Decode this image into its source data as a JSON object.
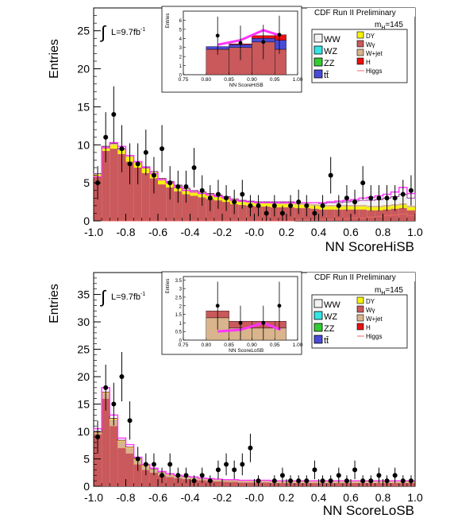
{
  "figure": {
    "panels": [
      {
        "banner": "CDF Run II Preliminary",
        "mass_label": "m",
        "mass_sub": "H",
        "mass_value": "=145",
        "lumi_text": "L=9.7fb",
        "lumi_sup": "-1",
        "integral_symbol": "∫",
        "ylabel": "Entries",
        "xlabel": "NN ScoreHiSB",
        "inset_xlabel": "NN ScoreHiSB",
        "inset_ylabel": "Entries"
      },
      {
        "banner": "CDF Run II Preliminary",
        "mass_label": "m",
        "mass_sub": "H",
        "mass_value": "=145",
        "lumi_text": "L=9.7fb",
        "lumi_sup": "-1",
        "integral_symbol": "∫",
        "ylabel": "Entries",
        "xlabel": "NN ScoreLoSB",
        "inset_xlabel": "NN ScoreLoSB",
        "inset_ylabel": "Entries"
      }
    ],
    "legend": {
      "left": [
        {
          "label": "WW",
          "color": "#f2f2f2"
        },
        {
          "label": "WZ",
          "color": "#33e6e6"
        },
        {
          "label": "ZZ",
          "color": "#33cc33"
        },
        {
          "label": "tt̄",
          "color": "#4a4ad9"
        }
      ],
      "right": [
        {
          "label": "DY",
          "color": "#f5f20a"
        },
        {
          "label": "Wγ",
          "color": "#c9595b"
        },
        {
          "label": "W+jet",
          "color": "#d9b48c"
        },
        {
          "label": "H",
          "color": "#e80f0f"
        },
        {
          "label": "Higgs",
          "color": "#e86b6b",
          "line": true
        }
      ]
    },
    "colors": {
      "wgamma": "#c9595b",
      "wjet": "#d9b48c",
      "dy": "#f5f20a",
      "ww": "#f2f2f2",
      "signal_band": "#ff33ff",
      "higgs_line": "#e86b6b",
      "ttbar": "#4a4ad9",
      "h_red": "#e80f0f"
    }
  },
  "chart_data": [
    {
      "type": "bar",
      "title": "",
      "xlabel": "NN ScoreHiSB",
      "ylabel": "Entries",
      "xlim": [
        -1.0,
        1.0
      ],
      "ylim": [
        0,
        28
      ],
      "yticks": [
        0,
        5,
        10,
        15,
        20,
        25
      ],
      "xticks": [
        -1.0,
        -0.8,
        -0.6,
        -0.4,
        -0.2,
        -0.0,
        0.2,
        0.4,
        0.6,
        0.8,
        1.0
      ],
      "xtick_labels": [
        "-1.0",
        "-0.8",
        "-0.6",
        "-0.4",
        "-0.2",
        "-0.0",
        "0.2",
        "0.4",
        "0.6",
        "0.8",
        "1.0"
      ],
      "bin_edges": [
        -1.0,
        -0.95,
        -0.9,
        -0.85,
        -0.8,
        -0.75,
        -0.7,
        -0.65,
        -0.6,
        -0.55,
        -0.5,
        -0.45,
        -0.4,
        -0.35,
        -0.3,
        -0.25,
        -0.2,
        -0.15,
        -0.1,
        -0.05,
        0.0,
        0.05,
        0.1,
        0.15,
        0.2,
        0.25,
        0.3,
        0.35,
        0.4,
        0.45,
        0.5,
        0.55,
        0.6,
        0.65,
        0.7,
        0.75,
        0.8,
        0.85,
        0.9,
        0.95,
        1.0
      ],
      "series": [
        {
          "name": "Wγ",
          "values": [
            5.8,
            9.2,
            9.5,
            8.8,
            7.8,
            7.0,
            6.3,
            5.6,
            4.8,
            4.4,
            3.9,
            3.5,
            3.3,
            3.1,
            2.9,
            2.7,
            2.5,
            2.2,
            2.1,
            2.0,
            1.9,
            1.9,
            1.8,
            1.8,
            1.8,
            1.7,
            1.7,
            1.6,
            1.5,
            1.5,
            1.5,
            1.5,
            1.5,
            1.5,
            1.4,
            1.4,
            1.5,
            1.6,
            1.7,
            1.4
          ]
        },
        {
          "name": "DY",
          "values": [
            0.3,
            0.4,
            0.5,
            0.5,
            0.6,
            0.6,
            0.6,
            0.7,
            0.6,
            0.6,
            0.6,
            0.6,
            0.5,
            0.5,
            0.5,
            0.5,
            0.5,
            0.5,
            0.4,
            0.4,
            0.4,
            0.4,
            0.4,
            0.4,
            0.4,
            0.4,
            0.4,
            0.4,
            0.4,
            0.4,
            0.4,
            0.4,
            0.4,
            0.4,
            0.4,
            0.4,
            0.4,
            0.4,
            0.4,
            0.4
          ]
        },
        {
          "name": "W+jet",
          "values": [
            0.1,
            0.2,
            0.2,
            0.2,
            0.2,
            0.2,
            0.2,
            0.2,
            0.2,
            0.2,
            0.2,
            0.2,
            0.2,
            0.2,
            0.2,
            0.2,
            0.2,
            0.2,
            0.2,
            0.2,
            0.2,
            0.2,
            0.2,
            0.2,
            0.2,
            0.2,
            0.2,
            0.2,
            0.2,
            0.2,
            0.2,
            0.2,
            0.2,
            0.2,
            0.2,
            0.2,
            0.2,
            0.2,
            0.2,
            0.2
          ]
        },
        {
          "name": "WW",
          "values": [
            0.0,
            0.0,
            0.0,
            0.0,
            0.0,
            0.0,
            0.0,
            0.0,
            0.0,
            0.0,
            0.0,
            0.0,
            0.0,
            0.0,
            0.0,
            0.0,
            0.0,
            0.0,
            0.0,
            0.0,
            0.0,
            0.0,
            0.1,
            0.1,
            0.1,
            0.1,
            0.1,
            0.2,
            0.2,
            0.3,
            0.3,
            0.4,
            0.5,
            0.6,
            0.7,
            0.8,
            0.9,
            1.0,
            1.2,
            1.0
          ]
        }
      ],
      "signal_band": [
        5.8,
        9.6,
        10.3,
        9.8,
        8.6,
        7.8,
        7.0,
        6.2,
        5.4,
        5.0,
        4.4,
        4.0,
        3.8,
        3.6,
        3.4,
        3.2,
        3.0,
        2.7,
        2.6,
        2.5,
        2.4,
        2.4,
        2.4,
        2.4,
        2.4,
        2.4,
        2.4,
        2.4,
        2.4,
        2.5,
        2.6,
        2.7,
        2.8,
        3.0,
        3.1,
        3.3,
        3.5,
        3.8,
        4.4,
        3.6
      ],
      "higgs_line": [
        0.0,
        0.0,
        0.0,
        0.0,
        0.0,
        0.0,
        0.0,
        0.0,
        0.0,
        0.0,
        0.0,
        0.0,
        0.0,
        0.0,
        0.0,
        0.0,
        0.0,
        0.0,
        0.0,
        0.0,
        0.0,
        0.0,
        0.0,
        0.0,
        0.0,
        0.1,
        0.1,
        0.1,
        0.2,
        0.2,
        0.3,
        0.3,
        0.4,
        0.4,
        0.5,
        0.6,
        0.7,
        0.8,
        0.9,
        0.7
      ],
      "data_points": [
        5,
        11,
        14,
        9.5,
        7.5,
        7.5,
        9,
        6,
        9.5,
        5,
        4.5,
        4.5,
        7,
        4,
        3,
        3.5,
        3,
        2.5,
        3.5,
        2,
        2,
        1,
        2,
        1,
        2,
        2.5,
        2,
        1,
        2,
        6,
        2,
        3,
        2.5,
        5,
        3,
        3,
        3,
        3,
        3.5,
        4
      ],
      "data_errors": [
        2.2,
        3.3,
        3.7,
        3.1,
        2.7,
        2.7,
        3.0,
        2.4,
        3.1,
        2.2,
        2.1,
        2.1,
        2.6,
        2.0,
        1.7,
        1.9,
        1.7,
        1.6,
        1.9,
        1.4,
        1.4,
        1.0,
        1.4,
        1.0,
        1.4,
        1.6,
        1.4,
        1.0,
        1.4,
        2.4,
        1.4,
        1.7,
        1.6,
        2.2,
        1.7,
        1.7,
        1.7,
        1.7,
        1.9,
        2.0
      ],
      "inset": {
        "xlim": [
          0.75,
          1.0
        ],
        "ylim": [
          0,
          7
        ],
        "yticks": [
          0,
          1,
          2,
          3,
          4,
          5,
          6
        ],
        "xticks": [
          0.75,
          0.8,
          0.85,
          0.9,
          0.95,
          1.0
        ],
        "xtick_labels": [
          "0.75",
          "0.80",
          "0.85",
          "0.90",
          "0.95",
          "1.00"
        ],
        "bin_edges": [
          0.8,
          0.85,
          0.9,
          0.95,
          0.975
        ],
        "series": [
          {
            "name": "Wγ",
            "values": [
              2.8,
              3.0,
              3.6,
              2.8
            ]
          },
          {
            "name": "tt̄",
            "values": [
              0.3,
              0.3,
              0.4,
              1.0
            ]
          },
          {
            "name": "H",
            "values": [
              0.0,
              0.1,
              0.3,
              0.6
            ]
          }
        ],
        "signal_band": [
          3.3,
          3.8,
          4.9,
          4.3
        ],
        "data_x": [
          0.825,
          0.875,
          0.925,
          0.96
        ],
        "data_points": [
          4.3,
          3.5,
          3.6,
          4.4
        ],
        "data_errors": [
          2.1,
          1.9,
          1.9,
          2.1
        ]
      }
    },
    {
      "type": "bar",
      "title": "",
      "xlabel": "NN ScoreLoSB",
      "ylabel": "Entries",
      "xlim": [
        -1.0,
        1.0
      ],
      "ylim": [
        0,
        39
      ],
      "yticks": [
        0,
        5,
        10,
        15,
        20,
        25,
        30,
        35
      ],
      "xticks": [
        -1.0,
        -0.8,
        -0.6,
        -0.4,
        -0.2,
        -0.0,
        0.2,
        0.4,
        0.6,
        0.8,
        1.0
      ],
      "xtick_labels": [
        "-1.0",
        "-0.8",
        "-0.6",
        "-0.4",
        "-0.2",
        "-0.0",
        "0.2",
        "0.4",
        "0.6",
        "0.8",
        "1.0"
      ],
      "bin_edges": [
        -1.0,
        -0.95,
        -0.9,
        -0.85,
        -0.8,
        -0.75,
        -0.7,
        -0.65,
        -0.6,
        -0.55,
        -0.5,
        -0.45,
        -0.4,
        -0.35,
        -0.3,
        -0.25,
        -0.2,
        -0.15,
        -0.1,
        -0.05,
        0.0,
        0.05,
        0.1,
        0.15,
        0.2,
        0.25,
        0.3,
        0.35,
        0.4,
        0.45,
        0.5,
        0.55,
        0.6,
        0.65,
        0.7,
        0.75,
        0.8,
        0.85,
        0.9,
        0.95,
        1.0
      ],
      "series": [
        {
          "name": "Wγ",
          "values": [
            9.5,
            16.0,
            11.0,
            7.0,
            6.0,
            4.0,
            3.0,
            2.5,
            2.0,
            1.7,
            1.5,
            1.3,
            1.2,
            1.1,
            1.0,
            0.9,
            0.8,
            0.8,
            0.7,
            0.7,
            0.7,
            0.7,
            0.6,
            0.6,
            0.6,
            0.6,
            0.6,
            0.6,
            0.6,
            0.6,
            0.6,
            0.6,
            0.6,
            0.6,
            0.6,
            0.6,
            0.6,
            0.6,
            0.6,
            0.6
          ]
        },
        {
          "name": "W+jet",
          "values": [
            0.3,
            1.0,
            1.2,
            1.2,
            1.0,
            0.9,
            0.7,
            0.6,
            0.5,
            0.5,
            0.4,
            0.4,
            0.4,
            0.3,
            0.3,
            0.3,
            0.3,
            0.3,
            0.3,
            0.3,
            0.3,
            0.3,
            0.3,
            0.3,
            0.3,
            0.3,
            0.3,
            0.3,
            0.3,
            0.3,
            0.3,
            0.3,
            0.3,
            0.3,
            0.3,
            0.3,
            0.3,
            0.3,
            0.3,
            0.3
          ]
        },
        {
          "name": "DY",
          "values": [
            0.1,
            0.2,
            0.2,
            0.2,
            0.2,
            0.2,
            0.2,
            0.1,
            0.1,
            0.1,
            0.1,
            0.1,
            0.1,
            0.1,
            0.1,
            0.1,
            0.1,
            0.1,
            0.1,
            0.1,
            0.1,
            0.1,
            0.1,
            0.1,
            0.1,
            0.1,
            0.1,
            0.1,
            0.1,
            0.1,
            0.1,
            0.1,
            0.1,
            0.1,
            0.1,
            0.1,
            0.1,
            0.1,
            0.1,
            0.1
          ]
        }
      ],
      "signal_band": [
        10.5,
        18.0,
        13.0,
        8.8,
        7.6,
        5.3,
        4.0,
        3.3,
        2.7,
        2.3,
        2.0,
        1.8,
        1.7,
        1.5,
        1.4,
        1.3,
        1.2,
        1.2,
        1.1,
        1.1,
        1.1,
        1.1,
        1.0,
        1.0,
        1.0,
        1.0,
        1.0,
        1.0,
        1.0,
        1.0,
        1.0,
        1.0,
        1.0,
        1.0,
        1.0,
        1.0,
        1.0,
        1.0,
        1.0,
        1.0
      ],
      "higgs_line": [
        0.0,
        0.0,
        0.0,
        0.0,
        0.0,
        0.0,
        0.0,
        0.0,
        0.0,
        0.0,
        0.0,
        0.0,
        0.0,
        0.0,
        0.0,
        0.0,
        0.0,
        0.0,
        0.0,
        0.0,
        0.0,
        0.0,
        0.0,
        0.0,
        0.0,
        0.0,
        0.0,
        0.0,
        0.0,
        0.0,
        0.0,
        0.0,
        0.0,
        0.0,
        0.0,
        0.0,
        0.0,
        0.0,
        0.0,
        0.0
      ],
      "data_points": [
        9,
        18,
        15,
        20,
        12,
        5,
        4,
        4,
        2,
        4,
        2,
        2,
        1,
        2,
        1,
        3,
        4,
        3,
        4,
        7,
        1,
        0,
        1,
        2,
        1,
        1,
        1,
        3,
        1,
        1,
        2,
        1,
        3,
        1,
        1,
        2,
        1,
        2,
        1,
        1
      ],
      "data_errors": [
        3.0,
        4.2,
        3.9,
        4.5,
        3.5,
        2.2,
        2.0,
        2.0,
        1.4,
        2.0,
        1.4,
        1.4,
        1.0,
        1.4,
        1.0,
        1.7,
        2.0,
        1.7,
        2.0,
        2.6,
        1.0,
        0.0,
        1.0,
        1.4,
        1.0,
        1.0,
        1.0,
        1.7,
        1.0,
        1.0,
        1.4,
        1.0,
        1.7,
        1.0,
        1.0,
        1.4,
        1.0,
        1.4,
        1.0,
        1.0
      ],
      "inset": {
        "xlim": [
          0.75,
          1.0
        ],
        "ylim": [
          0,
          3.7
        ],
        "yticks": [
          0,
          0.5,
          1.0,
          1.5,
          2.0,
          2.5,
          3.0,
          3.5
        ],
        "xticks": [
          0.75,
          0.8,
          0.85,
          0.9,
          0.95,
          1.0
        ],
        "xtick_labels": [
          "0.75",
          "0.80",
          "0.85",
          "0.90",
          "0.95",
          "1.00"
        ],
        "bin_edges": [
          0.8,
          0.85,
          0.9,
          0.95,
          0.975
        ],
        "series": [
          {
            "name": "W+jet",
            "values": [
              1.3,
              0.7,
              0.7,
              0.7
            ]
          },
          {
            "name": "Wγ",
            "values": [
              0.4,
              0.4,
              0.4,
              0.4
            ]
          }
        ],
        "signal_band": [
          0.5,
          0.6,
          1.0,
          0.6
        ],
        "data_x": [
          0.825,
          0.875,
          0.925,
          0.96
        ],
        "data_points": [
          2.0,
          1.0,
          1.0,
          2.0
        ],
        "data_errors": [
          1.4,
          1.0,
          1.0,
          1.4
        ]
      }
    }
  ]
}
